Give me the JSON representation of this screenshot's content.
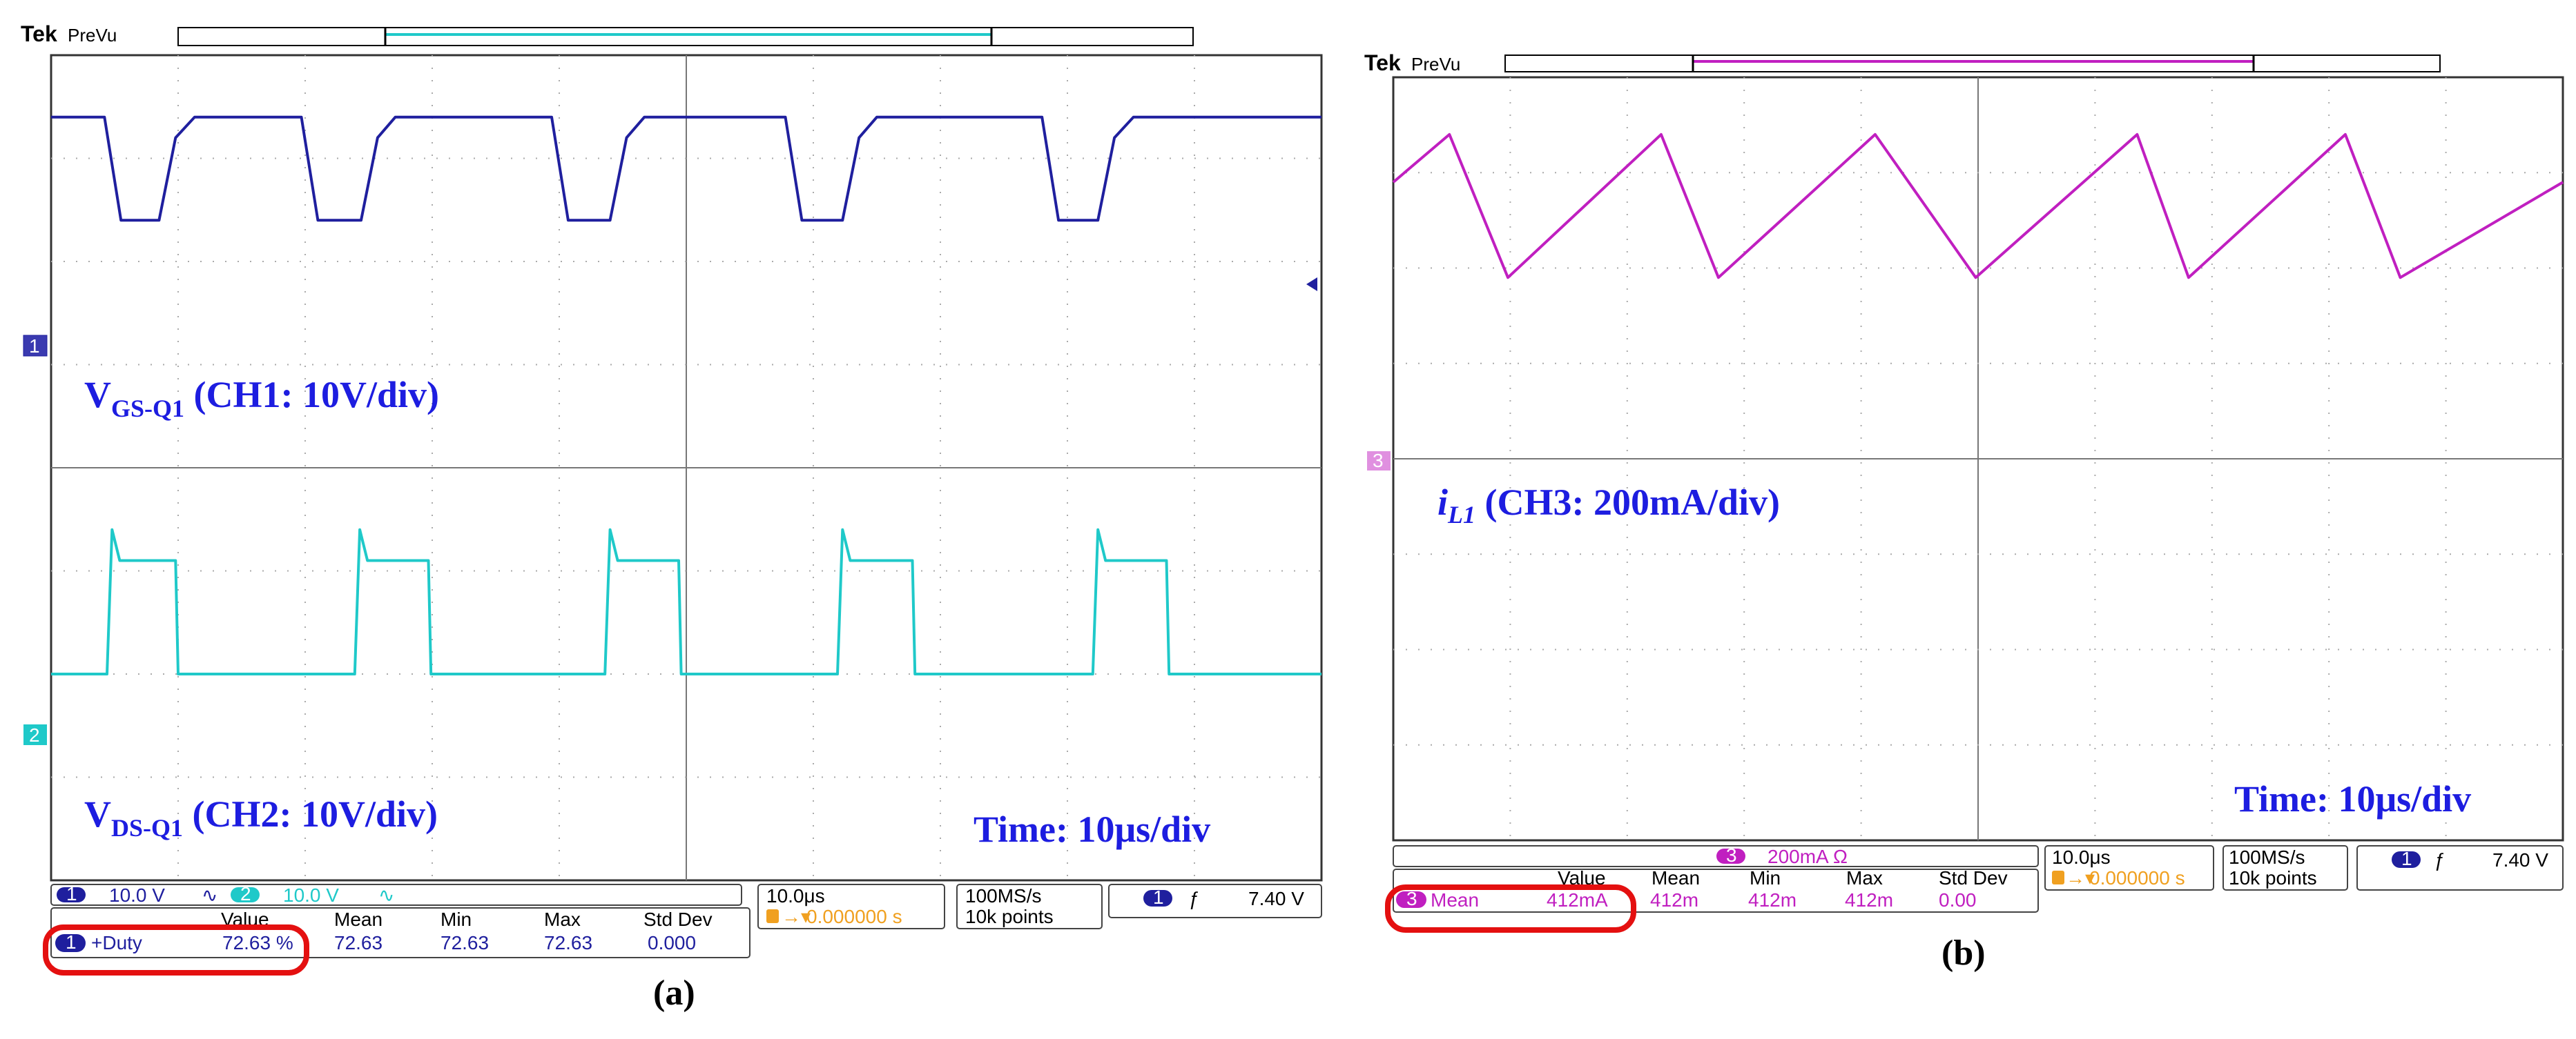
{
  "panel_a": {
    "brand": "Tek",
    "mode": "PreVu",
    "trigger_marker": "T",
    "ch1_marker": "1",
    "ch2_marker": "2",
    "annotations": {
      "vgs_main": "V",
      "vgs_sub": "GS-Q1",
      "vgs_rest": " (CH1: 10V/div)",
      "vds_main": "V",
      "vds_sub": "DS-Q1",
      "vds_rest": " (CH2: 10V/div)",
      "time": "Time: 10μs/div"
    },
    "status": {
      "ch1_badge": "1",
      "ch1_scale": "10.0 V",
      "ch2_badge": "2",
      "ch2_scale": "10.0 V",
      "timebase": "10.0μs",
      "trigger_pos": "0.000000 s",
      "sample_rate": "100MS/s",
      "record_length": "10k points",
      "trig_badge": "1",
      "trig_level": "7.40 V"
    },
    "measurements": {
      "headers": [
        "Value",
        "Mean",
        "Min",
        "Max",
        "Std Dev"
      ],
      "badge": "1",
      "label": "+Duty",
      "value": "72.63 %",
      "mean": "72.63",
      "min": "72.63",
      "max": "72.63",
      "std_dev": "0.000"
    },
    "caption": "(a)"
  },
  "panel_b": {
    "brand": "Tek",
    "mode": "PreVu",
    "trigger_marker": "T",
    "ch3_marker": "3",
    "annotations": {
      "il_main": "i",
      "il_sub": "L1",
      "il_rest": " (CH3: 200mA/div)",
      "time": "Time: 10μs/div"
    },
    "status": {
      "ch3_badge": "3",
      "ch3_scale": "200mA Ω",
      "timebase": "10.0μs",
      "trigger_pos": "0.000000 s",
      "sample_rate": "100MS/s",
      "record_length": "10k points",
      "trig_badge": "1",
      "trig_level": "7.40 V"
    },
    "measurements": {
      "headers": [
        "Value",
        "Mean",
        "Min",
        "Max",
        "Std Dev"
      ],
      "badge": "3",
      "label": "Mean",
      "value": "412mA",
      "mean": "412m",
      "min": "412m",
      "max": "412m",
      "std_dev": "0.00"
    },
    "caption": "(b)"
  },
  "colors": {
    "ch1": "#1f1f9e",
    "ch2": "#1fc9c9",
    "ch3": "#c01fc0",
    "trigger": "#f0a020",
    "highlight": "#e41010",
    "annotation": "#1d1de0"
  },
  "chart_data": [
    {
      "type": "line",
      "panel": "a",
      "title": "",
      "x_unit": "μs",
      "xlim": [
        -50,
        50
      ],
      "grid": true,
      "series": [
        {
          "name": "VGS-Q1",
          "channel": "CH1",
          "unit": "div",
          "x": [
            -50,
            -45.8,
            -44.5,
            -41.5,
            -40.2,
            -38.7,
            -30.3,
            -29.0,
            -25.6,
            -24.3,
            -22.9,
            -10.6,
            -9.3,
            -6.0,
            -4.7,
            -3.3,
            7.8,
            9.1,
            12.3,
            13.6,
            15.0,
            28.0,
            29.3,
            32.4,
            33.7,
            35.2,
            50
          ],
          "y": [
            3.4,
            3.4,
            2.4,
            2.4,
            3.2,
            3.4,
            3.4,
            2.4,
            2.4,
            3.2,
            3.4,
            3.4,
            2.4,
            2.4,
            3.2,
            3.4,
            3.4,
            2.4,
            2.4,
            3.2,
            3.4,
            3.4,
            2.4,
            2.4,
            3.2,
            3.4,
            3.4
          ]
        },
        {
          "name": "VDS-Q1",
          "channel": "CH2",
          "unit": "div",
          "x": [
            -50,
            -45.6,
            -45.2,
            -44.6,
            -40.2,
            -40.0,
            -26.1,
            -25.7,
            -25.1,
            -20.3,
            -20.1,
            -6.4,
            -6.0,
            -5.4,
            -0.6,
            -0.4,
            11.9,
            12.3,
            12.9,
            17.8,
            18.0,
            32.0,
            32.4,
            33.0,
            37.8,
            38.0,
            50
          ],
          "y": [
            -2.0,
            -2.0,
            -0.6,
            -0.9,
            -0.9,
            -2.0,
            -2.0,
            -0.6,
            -0.9,
            -0.9,
            -2.0,
            -2.0,
            -0.6,
            -0.9,
            -0.9,
            -2.0,
            -2.0,
            -0.6,
            -0.9,
            -0.9,
            -2.0,
            -2.0,
            -0.6,
            -0.9,
            -0.9,
            -2.0,
            -2.0
          ]
        }
      ]
    },
    {
      "type": "line",
      "panel": "b",
      "title": "",
      "x_unit": "μs",
      "xlim": [
        -50,
        50
      ],
      "grid": true,
      "series": [
        {
          "name": "iL1",
          "channel": "CH3",
          "unit": "div",
          "x": [
            -50,
            -45.2,
            -40.2,
            -27.1,
            -22.2,
            -8.8,
            -0.2,
            13.6,
            18.0,
            31.4,
            36.1,
            50
          ],
          "y": [
            2.9,
            3.4,
            1.9,
            3.4,
            1.9,
            3.4,
            1.9,
            3.4,
            1.9,
            3.4,
            1.9,
            2.9
          ]
        }
      ]
    }
  ]
}
